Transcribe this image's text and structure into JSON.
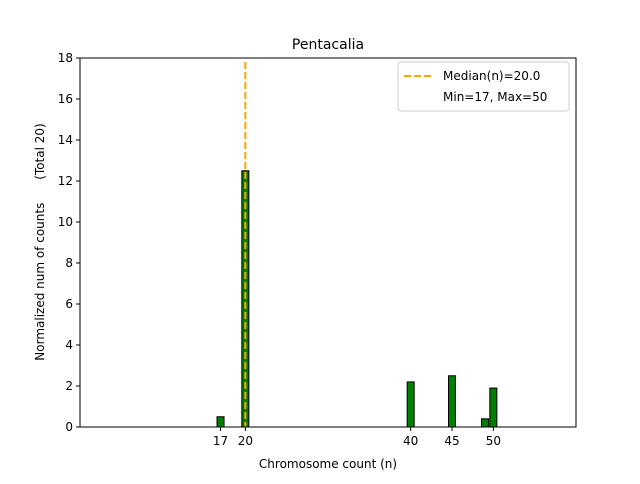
{
  "chart_data": {
    "type": "bar",
    "title": "Pentacalia",
    "xlabel": "Chromosome count (n)",
    "ylabel": "Normalized num of counts      (Total 20)",
    "xlim": [
      0,
      60
    ],
    "ylim": [
      0,
      18
    ],
    "xticks": [
      17,
      20,
      40,
      45,
      50
    ],
    "yticks": [
      0,
      2,
      4,
      6,
      8,
      10,
      12,
      14,
      16,
      18
    ],
    "bars": [
      {
        "x": 17,
        "value": 0.5
      },
      {
        "x": 20,
        "value": 12.5
      },
      {
        "x": 40,
        "value": 2.2
      },
      {
        "x": 45,
        "value": 2.5
      },
      {
        "x": 49,
        "value": 0.4
      },
      {
        "x": 50,
        "value": 1.9
      }
    ],
    "bar_color": "#007f00",
    "median": {
      "value": 20.0,
      "color": "#ffa500"
    },
    "legend": {
      "placement": "top-right",
      "entries": [
        "Median(n)=20.0",
        "Min=17, Max=50"
      ]
    }
  }
}
